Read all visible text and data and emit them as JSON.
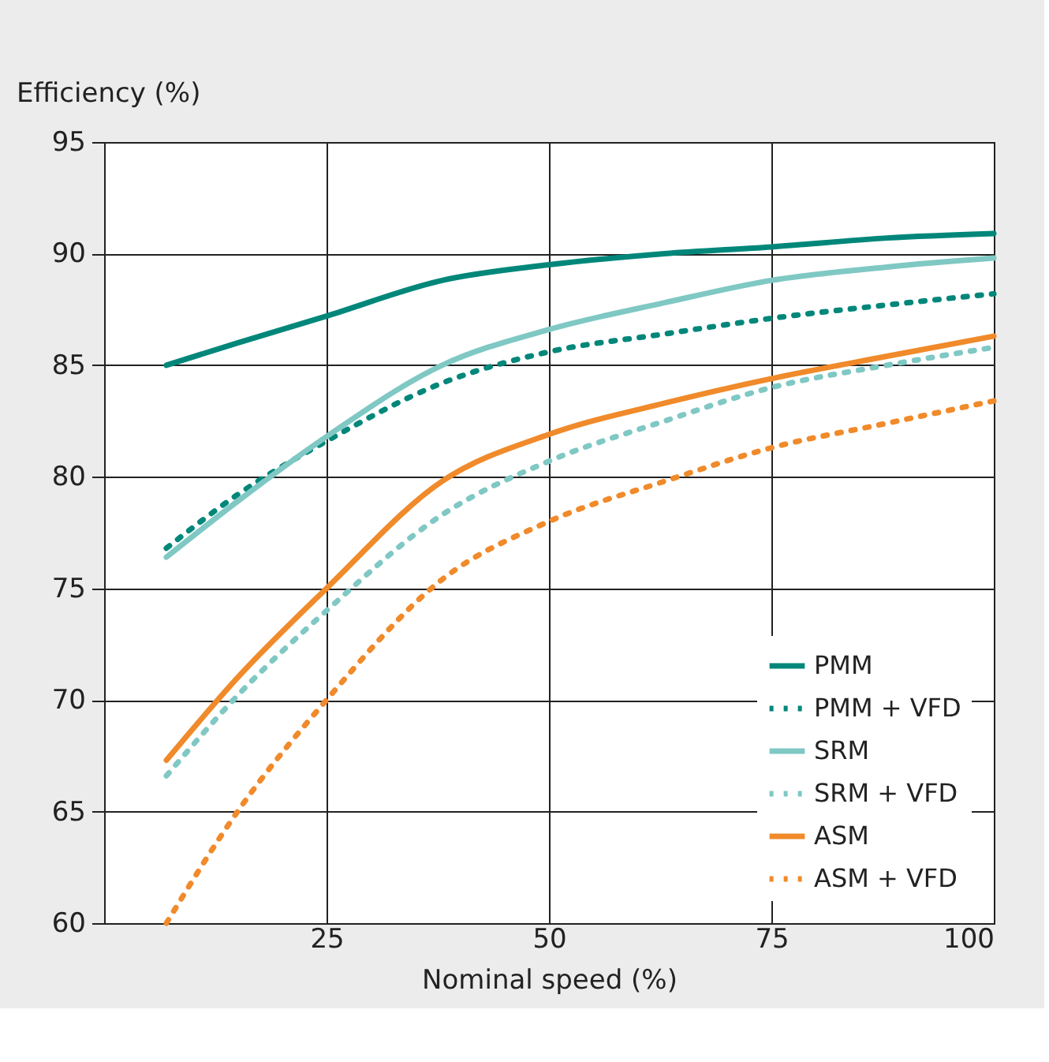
{
  "chart_data": {
    "type": "line",
    "xlabel": "Nominal speed (%)",
    "ylabel": "Efficiency (%)",
    "xlim": [
      0,
      100
    ],
    "xticks": [
      25,
      50,
      75,
      100
    ],
    "ylim": [
      60,
      95
    ],
    "yticks": [
      60,
      65,
      70,
      75,
      80,
      85,
      90,
      95
    ],
    "grid": true,
    "legend": "bottom right",
    "marker": "none",
    "x": [
      7,
      15,
      25,
      38,
      50,
      63,
      75,
      88,
      100
    ],
    "series": [
      {
        "name": "PMM",
        "color": "#00877a",
        "line_style": "solid",
        "values": [
          85.0,
          86.0,
          87.2,
          88.8,
          89.5,
          90.0,
          90.3,
          90.7,
          90.9
        ]
      },
      {
        "name": "PMM + VFD",
        "color": "#00877a",
        "line_style": "dotted",
        "values": [
          76.8,
          79.2,
          81.6,
          84.2,
          85.6,
          86.4,
          87.1,
          87.7,
          88.2
        ]
      },
      {
        "name": "SRM",
        "color": "#7fc8c4",
        "line_style": "solid",
        "values": [
          76.4,
          78.9,
          81.8,
          85.0,
          86.6,
          87.8,
          88.8,
          89.4,
          89.8
        ]
      },
      {
        "name": "SRM + VFD",
        "color": "#7fc8c4",
        "line_style": "dotted",
        "values": [
          66.6,
          70.2,
          74.0,
          78.3,
          80.7,
          82.5,
          84.0,
          85.0,
          85.8
        ]
      },
      {
        "name": "ASM",
        "color": "#f08a2a",
        "line_style": "solid",
        "values": [
          67.3,
          71.0,
          75.0,
          79.8,
          81.9,
          83.3,
          84.4,
          85.4,
          86.3
        ]
      },
      {
        "name": "ASM + VFD",
        "color": "#f08a2a",
        "line_style": "dotted",
        "values": [
          60.0,
          65.0,
          70.0,
          75.4,
          78.0,
          79.8,
          81.3,
          82.4,
          83.4
        ]
      }
    ]
  }
}
